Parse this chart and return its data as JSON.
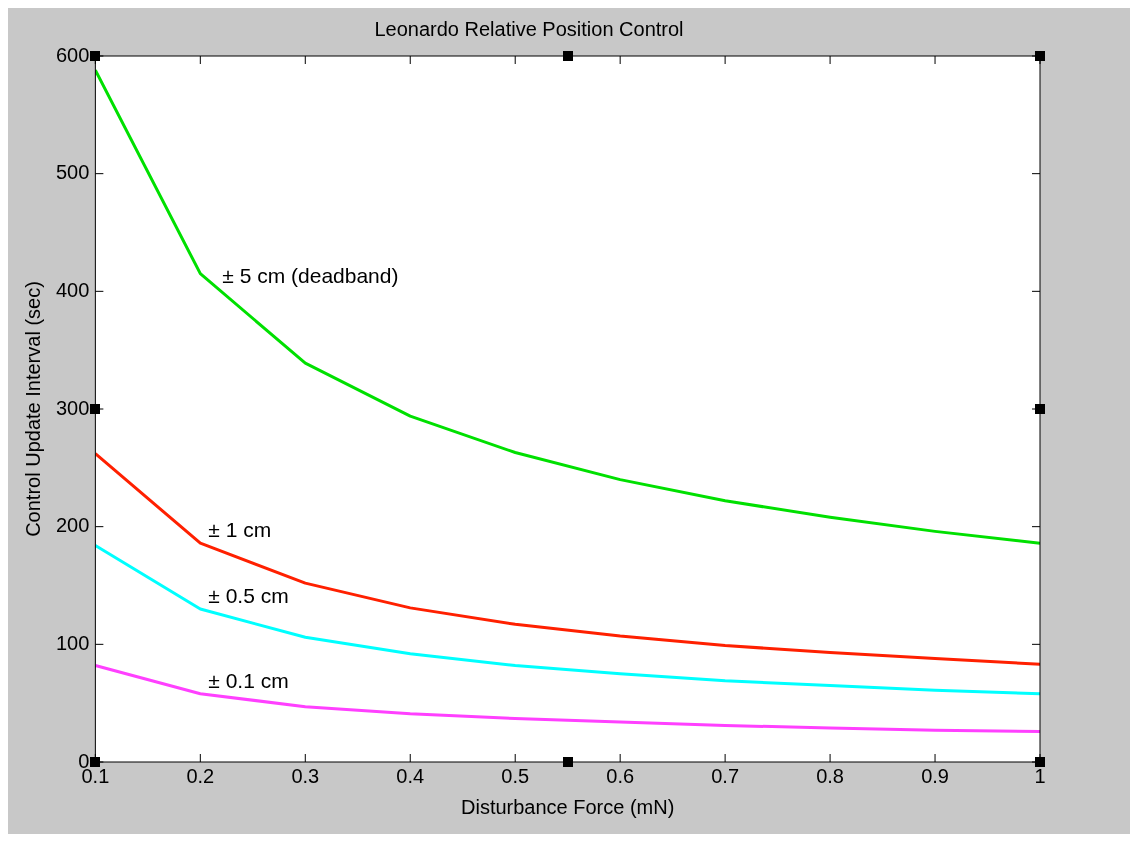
{
  "chart_data": {
    "type": "line",
    "title": "Leonardo Relative Position Control",
    "xlabel": "Disturbance Force (mN)",
    "ylabel": "Control Update Interval (sec)",
    "x": [
      0.1,
      0.2,
      0.3,
      0.4,
      0.5,
      0.6,
      0.7,
      0.8,
      0.9,
      1.0
    ],
    "series": [
      {
        "name": "± 5 cm (deadband)",
        "color": "#00e000",
        "values": [
          588,
          415,
          339,
          294,
          263,
          240,
          222,
          208,
          196,
          186
        ]
      },
      {
        "name": "± 1 cm",
        "color": "#ff2000",
        "values": [
          262,
          186,
          152,
          131,
          117,
          107,
          99,
          93,
          88,
          83
        ]
      },
      {
        "name": "± 0.5 cm",
        "color": "#00ffff",
        "values": [
          184,
          130,
          106,
          92,
          82,
          75,
          69,
          65,
          61,
          58
        ]
      },
      {
        "name": "± 0.1 cm",
        "color": "#ff40ff",
        "values": [
          82,
          58,
          47,
          41,
          37,
          34,
          31,
          29,
          27,
          26
        ]
      }
    ],
    "xlim": [
      0.1,
      1
    ],
    "xticks": [
      0.1,
      0.2,
      0.3,
      0.4,
      0.5,
      0.6,
      0.7,
      0.8,
      0.9,
      {
        "value": 1,
        "label": "1"
      }
    ],
    "ylim": [
      0,
      600
    ],
    "yticks": [
      0,
      100,
      200,
      300,
      400,
      500,
      600
    ],
    "grid": false,
    "legend": false,
    "marker": "none",
    "line_style": "solid"
  }
}
